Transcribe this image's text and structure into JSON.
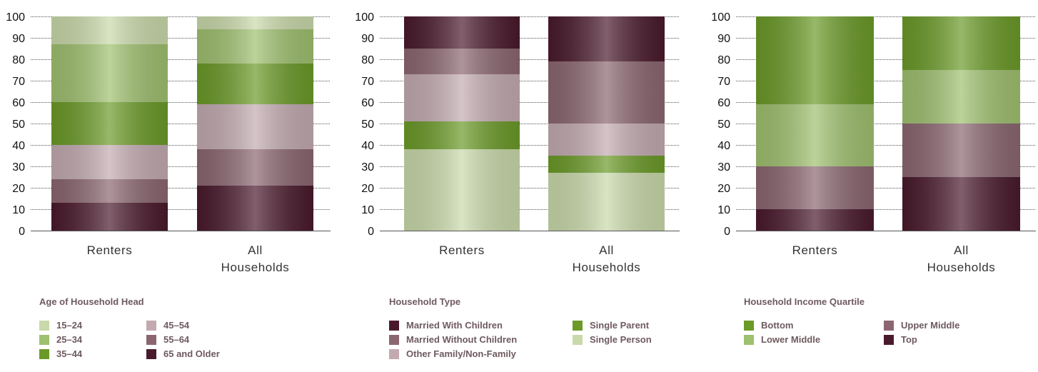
{
  "palette": {
    "light_green": "#c9d9aa",
    "mid_green": "#9fc06f",
    "dark_green": "#6b9a28",
    "light_mauve": "#c2aab0",
    "mid_mauve": "#8b6670",
    "dark_plum": "#4a1a2c",
    "tick_text": "#111111",
    "legend_text": "#6e5a5f"
  },
  "chart_data": [
    {
      "type": "bar",
      "stacked": true,
      "ylim": [
        0,
        100
      ],
      "yticks": [
        0,
        10,
        20,
        30,
        40,
        50,
        60,
        70,
        80,
        90,
        100
      ],
      "categories": [
        [
          "Renters"
        ],
        [
          "All",
          "Households"
        ]
      ],
      "legend_title": "Age of Household Head",
      "legend_rows": 3,
      "stack_order": [
        "65 and Older",
        "55–64",
        "45–54",
        "35–44",
        "25–34",
        "15–24"
      ],
      "series": [
        {
          "name": "15–24",
          "color": "#c9d9aa",
          "values": [
            13,
            6
          ]
        },
        {
          "name": "25–34",
          "color": "#9fc06f",
          "values": [
            27,
            16
          ]
        },
        {
          "name": "35–44",
          "color": "#6b9a28",
          "values": [
            20,
            19
          ]
        },
        {
          "name": "45–54",
          "color": "#c2aab0",
          "values": [
            16,
            21
          ]
        },
        {
          "name": "55–64",
          "color": "#8b6670",
          "values": [
            11,
            17
          ]
        },
        {
          "name": "65 and Older",
          "color": "#4a1a2c",
          "values": [
            13,
            21
          ]
        }
      ]
    },
    {
      "type": "bar",
      "stacked": true,
      "ylim": [
        0,
        100
      ],
      "yticks": [
        0,
        10,
        20,
        30,
        40,
        50,
        60,
        70,
        80,
        90,
        100
      ],
      "categories": [
        [
          "Renters"
        ],
        [
          "All",
          "Households"
        ]
      ],
      "legend_title": "Household Type",
      "legend_rows": 3,
      "stack_order": [
        "Single Person",
        "Single Parent",
        "Other Family/Non-Family",
        "Married Without Children",
        "Married With Children"
      ],
      "series": [
        {
          "name": "Married With Children",
          "color": "#4a1a2c",
          "values": [
            15,
            21
          ]
        },
        {
          "name": "Married Without Children",
          "color": "#8b6670",
          "values": [
            12,
            29
          ]
        },
        {
          "name": "Other Family/Non-Family",
          "color": "#c2aab0",
          "values": [
            22,
            15
          ]
        },
        {
          "name": "Single Parent",
          "color": "#6b9a28",
          "values": [
            13,
            8
          ]
        },
        {
          "name": "Single Person",
          "color": "#c9d9aa",
          "values": [
            38,
            27
          ]
        }
      ]
    },
    {
      "type": "bar",
      "stacked": true,
      "ylim": [
        0,
        100
      ],
      "yticks": [
        0,
        10,
        20,
        30,
        40,
        50,
        60,
        70,
        80,
        90,
        100
      ],
      "categories": [
        [
          "Renters"
        ],
        [
          "All",
          "Households"
        ]
      ],
      "legend_title": "Household Income Quartile",
      "legend_rows": 2,
      "stack_order": [
        "Top",
        "Upper Middle",
        "Lower Middle",
        "Bottom"
      ],
      "series": [
        {
          "name": "Bottom",
          "color": "#6b9a28",
          "values": [
            41,
            25
          ]
        },
        {
          "name": "Lower Middle",
          "color": "#9fc06f",
          "values": [
            29,
            25
          ]
        },
        {
          "name": "Upper Middle",
          "color": "#8b6670",
          "values": [
            20,
            25
          ]
        },
        {
          "name": "Top",
          "color": "#4a1a2c",
          "values": [
            10,
            25
          ]
        }
      ]
    }
  ]
}
